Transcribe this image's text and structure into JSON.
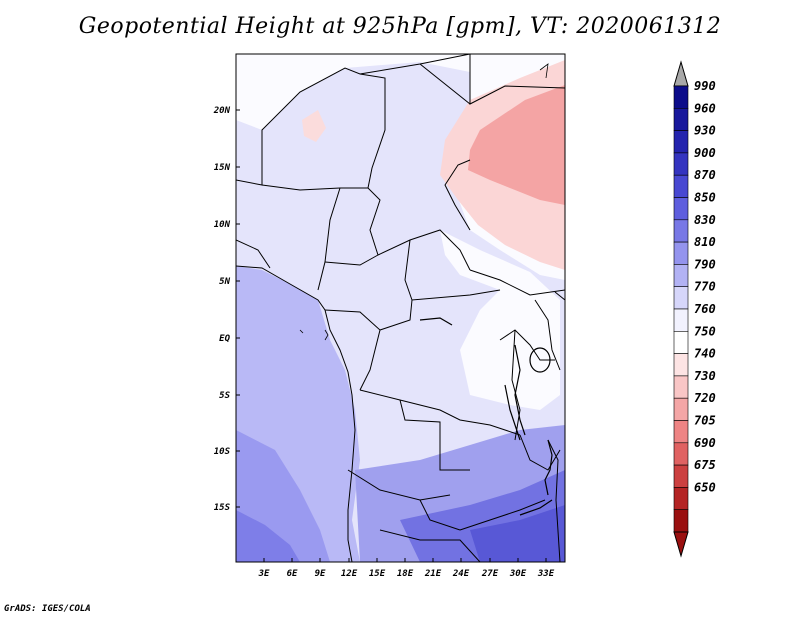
{
  "title": "Geopotential Height at 925hPa [gpm], VT: 2020061312",
  "footer": "GrADS: IGES/COLA",
  "map": {
    "lat_labels": [
      "20N",
      "15N",
      "10N",
      "5N",
      "EQ",
      "5S",
      "10S",
      "15S"
    ],
    "lon_labels": [
      "3E",
      "6E",
      "9E",
      "12E",
      "15E",
      "18E",
      "21E",
      "24E",
      "27E",
      "30E",
      "33E"
    ]
  },
  "colorbar": {
    "labels": [
      "990",
      "960",
      "930",
      "900",
      "870",
      "850",
      "830",
      "810",
      "790",
      "770",
      "760",
      "750",
      "740",
      "730",
      "720",
      "705",
      "690",
      "675",
      "650"
    ],
    "colors": [
      "#0c0c8a",
      "#18189c",
      "#2424ae",
      "#3434c0",
      "#4848d2",
      "#5e5ede",
      "#7878e6",
      "#9494ee",
      "#b2b2f4",
      "#d6d6fa",
      "#f2f2fe",
      "#ffffff",
      "#fde4e4",
      "#f9c6c6",
      "#f4a6a6",
      "#ee8484",
      "#e06262",
      "#cc4040",
      "#b42424",
      "#9a1010"
    ]
  }
}
